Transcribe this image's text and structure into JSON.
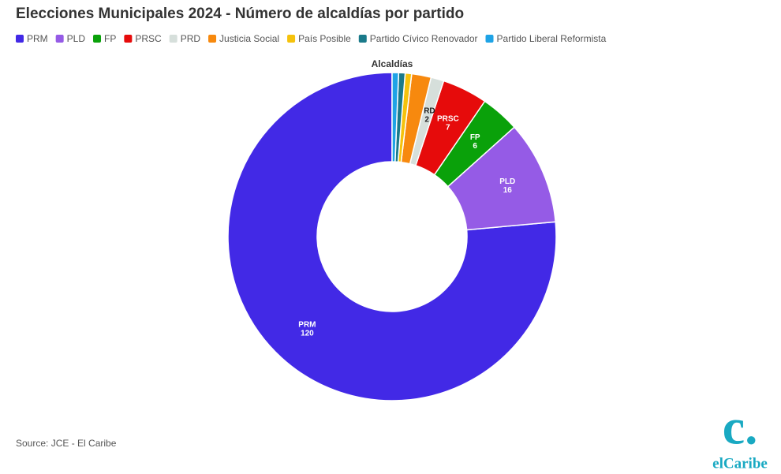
{
  "chart_data": {
    "type": "donut",
    "title": "Elecciones Municipales 2024 - Número de alcaldías por partido",
    "series_name": "Alcaldías",
    "categories": [
      "PRM",
      "PLD",
      "FP",
      "PRSC",
      "PRD",
      "Justicia Social",
      "País Posible",
      "Partido Cívico Renovador",
      "Partido Liberal Reformista"
    ],
    "values": [
      120,
      16,
      6,
      7,
      2,
      3,
      1,
      1,
      1
    ],
    "value_labels": [
      "120",
      "16",
      "6",
      "7",
      "2",
      null,
      null,
      null,
      null
    ],
    "colors": [
      "#4229e6",
      "#955be6",
      "#0aa10a",
      "#e60b0b",
      "#d6dfdb",
      "#f7890e",
      "#f5c20c",
      "#1a7a8a",
      "#1ea3e6"
    ],
    "source": "Source: JCE - El Caribe"
  },
  "logo": {
    "mark": "c.",
    "name": "elCaribe"
  }
}
